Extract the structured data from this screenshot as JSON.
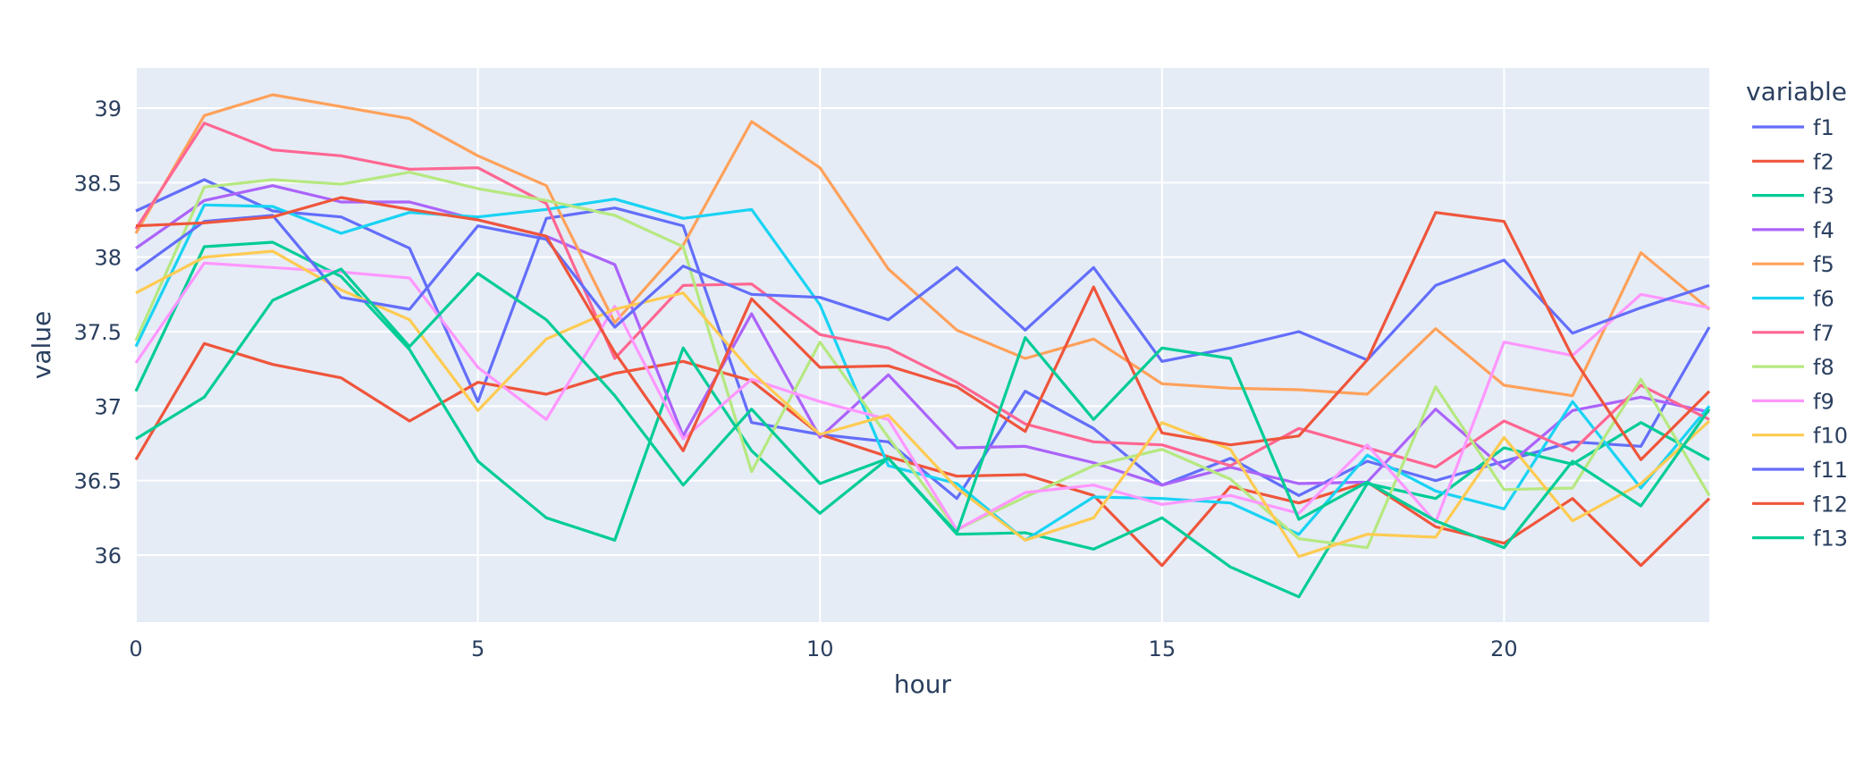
{
  "chart_data": {
    "type": "line",
    "xlabel": "hour",
    "ylabel": "value",
    "legend_title": "variable",
    "legend_position": "right",
    "grid": true,
    "plot_background": "#e5ecf6",
    "xlim": [
      0,
      23
    ],
    "ylim": [
      35.55,
      39.27
    ],
    "x_ticks": [
      0,
      5,
      10,
      15,
      20
    ],
    "y_ticks": [
      36,
      36.5,
      37,
      37.5,
      38,
      38.5,
      39
    ],
    "x": [
      0,
      1,
      2,
      3,
      4,
      5,
      6,
      7,
      8,
      9,
      10,
      11,
      12,
      13,
      14,
      15,
      16,
      17,
      18,
      19,
      20,
      21,
      22,
      23
    ],
    "series": [
      {
        "name": "f1",
        "color": "#636efa",
        "values": [
          38.31,
          38.52,
          38.31,
          38.27,
          38.06,
          37.03,
          38.26,
          38.33,
          38.21,
          36.89,
          36.81,
          36.76,
          36.38,
          37.1,
          36.85,
          36.47,
          36.65,
          36.4,
          36.63,
          36.5,
          36.63,
          36.76,
          36.73,
          37.53
        ]
      },
      {
        "name": "f2",
        "color": "#ef553b",
        "values": [
          36.64,
          37.42,
          37.28,
          37.19,
          36.9,
          37.16,
          37.08,
          37.22,
          37.3,
          37.17,
          36.81,
          36.66,
          36.53,
          36.54,
          36.4,
          35.93,
          36.46,
          36.35,
          36.49,
          36.19,
          36.08,
          36.38,
          35.93,
          36.38
        ]
      },
      {
        "name": "f3",
        "color": "#00cc96",
        "values": [
          37.1,
          38.07,
          38.1,
          37.87,
          37.38,
          36.63,
          36.25,
          36.1,
          37.39,
          36.7,
          36.28,
          36.65,
          36.14,
          36.15,
          36.04,
          36.25,
          35.92,
          35.72,
          36.48,
          36.38,
          36.72,
          36.61,
          36.89,
          36.64
        ]
      },
      {
        "name": "f4",
        "color": "#ab63fa",
        "values": [
          38.06,
          38.38,
          38.48,
          38.37,
          38.37,
          38.25,
          38.14,
          37.95,
          36.8,
          37.62,
          36.79,
          37.21,
          36.72,
          36.73,
          36.62,
          36.47,
          36.59,
          36.48,
          36.49,
          36.98,
          36.58,
          36.97,
          37.06,
          36.96
        ]
      },
      {
        "name": "f5",
        "color": "#ffa15a",
        "values": [
          38.16,
          38.95,
          39.09,
          39.01,
          38.93,
          38.68,
          38.48,
          37.56,
          38.08,
          38.91,
          38.6,
          37.92,
          37.51,
          37.32,
          37.45,
          37.15,
          37.12,
          37.11,
          37.08,
          37.52,
          37.14,
          37.07,
          38.03,
          37.65
        ]
      },
      {
        "name": "f6",
        "color": "#19d3f3",
        "values": [
          37.4,
          38.35,
          38.34,
          38.16,
          38.3,
          38.27,
          38.32,
          38.39,
          38.26,
          38.32,
          37.68,
          36.6,
          36.48,
          36.1,
          36.39,
          36.38,
          36.35,
          36.14,
          36.67,
          36.43,
          36.31,
          37.03,
          36.45,
          37.0
        ]
      },
      {
        "name": "f7",
        "color": "#ff6692",
        "values": [
          38.19,
          38.9,
          38.72,
          38.68,
          38.59,
          38.6,
          38.36,
          37.32,
          37.81,
          37.82,
          37.48,
          37.39,
          37.16,
          36.88,
          36.76,
          36.74,
          36.6,
          36.85,
          36.72,
          36.59,
          36.9,
          36.7,
          37.14,
          36.91
        ]
      },
      {
        "name": "f8",
        "color": "#b6e880",
        "values": [
          37.44,
          38.47,
          38.52,
          38.49,
          38.57,
          38.46,
          38.38,
          38.28,
          38.07,
          36.56,
          37.43,
          36.79,
          36.17,
          36.39,
          36.6,
          36.71,
          36.51,
          36.11,
          36.05,
          37.13,
          36.44,
          36.45,
          37.18,
          36.4
        ]
      },
      {
        "name": "f9",
        "color": "#ff97ff",
        "values": [
          37.29,
          37.96,
          37.93,
          37.9,
          37.86,
          37.26,
          36.91,
          37.67,
          36.78,
          37.18,
          37.03,
          36.91,
          36.17,
          36.42,
          36.47,
          36.34,
          36.4,
          36.28,
          36.74,
          36.22,
          37.43,
          37.34,
          37.75,
          37.66
        ]
      },
      {
        "name": "f10",
        "color": "#fecb52",
        "values": [
          37.76,
          38.0,
          38.04,
          37.78,
          37.58,
          36.97,
          37.45,
          37.65,
          37.76,
          37.23,
          36.81,
          36.94,
          36.45,
          36.1,
          36.25,
          36.89,
          36.71,
          35.99,
          36.14,
          36.12,
          36.79,
          36.23,
          36.48,
          36.9
        ]
      },
      {
        "name": "f11",
        "color": "#636efa",
        "values": [
          37.91,
          38.24,
          38.28,
          37.73,
          37.65,
          38.21,
          38.12,
          37.53,
          37.94,
          37.75,
          37.73,
          37.58,
          37.93,
          37.51,
          37.93,
          37.3,
          37.39,
          37.5,
          37.31,
          37.81,
          37.98,
          37.49,
          37.66,
          37.81
        ]
      },
      {
        "name": "f12",
        "color": "#ef553b",
        "values": [
          38.21,
          38.23,
          38.27,
          38.4,
          38.32,
          38.25,
          38.14,
          37.36,
          36.7,
          37.72,
          37.26,
          37.27,
          37.13,
          36.83,
          37.8,
          36.82,
          36.74,
          36.8,
          37.31,
          38.3,
          38.24,
          37.33,
          36.64,
          37.1
        ]
      },
      {
        "name": "f13",
        "color": "#00cc96",
        "values": [
          36.78,
          37.06,
          37.71,
          37.92,
          37.4,
          37.89,
          37.58,
          37.07,
          36.47,
          36.98,
          36.48,
          36.65,
          36.15,
          37.46,
          36.91,
          37.39,
          37.32,
          36.24,
          36.49,
          36.23,
          36.05,
          36.63,
          36.33,
          36.98
        ]
      }
    ]
  }
}
